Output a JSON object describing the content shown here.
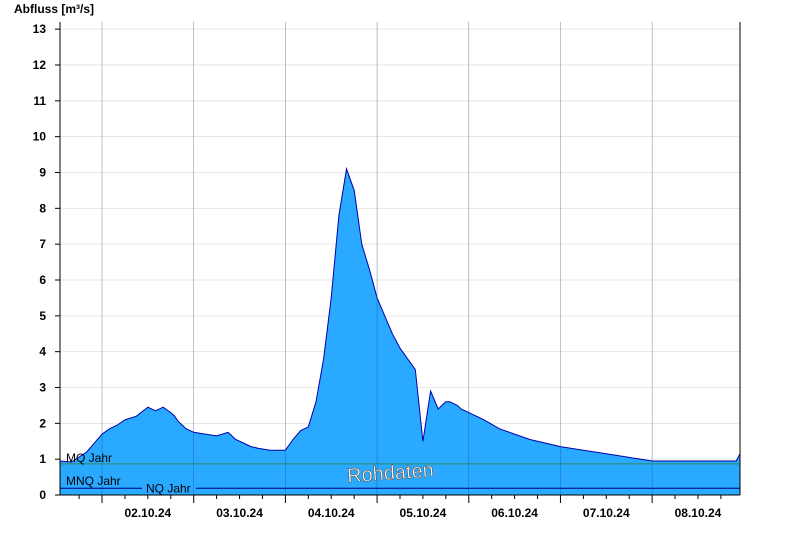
{
  "chart_data": {
    "type": "area",
    "ylabel": "Abfluss [m³/s]",
    "ylim": [
      0,
      13.2
    ],
    "yticks": [
      0,
      1,
      2,
      3,
      4,
      5,
      6,
      7,
      8,
      9,
      10,
      11,
      12,
      13
    ],
    "xlim": [
      "2024-10-01T13:00",
      "2024-10-08T23:00"
    ],
    "xtick_labels": [
      "02.10.24",
      "03.10.24",
      "04.10.24",
      "05.10.24",
      "06.10.24",
      "07.10.24",
      "08.10.24"
    ],
    "xtick_times": [
      "2024-10-02T12:00",
      "2024-10-03T12:00",
      "2024-10-04T12:00",
      "2024-10-05T12:00",
      "2024-10-06T12:00",
      "2024-10-07T12:00",
      "2024-10-08T12:00"
    ],
    "day_boundaries": [
      "2024-10-02T00:00",
      "2024-10-03T00:00",
      "2024-10-04T00:00",
      "2024-10-05T00:00",
      "2024-10-06T00:00",
      "2024-10-07T00:00",
      "2024-10-08T00:00"
    ],
    "grid": true,
    "colors": {
      "fill": "#29A9FF",
      "stroke": "#0000AA",
      "mq_line": "#2E8B57",
      "nq_line": "#000080"
    },
    "reference_lines": [
      {
        "label": "MQ Jahr",
        "value": 0.87
      },
      {
        "label": "MNQ Jahr",
        "value": 0.19
      },
      {
        "label": "NQ Jahr",
        "value": 0.16
      }
    ],
    "watermark": "Rohdaten",
    "series": [
      {
        "x": [
          "2024-10-01T13:00",
          "2024-10-01T16:00",
          "2024-10-01T20:00",
          "2024-10-02T00:00",
          "2024-10-02T02:00",
          "2024-10-02T04:00",
          "2024-10-02T06:00",
          "2024-10-02T09:00",
          "2024-10-02T12:00",
          "2024-10-02T14:00",
          "2024-10-02T16:00",
          "2024-10-02T18:00",
          "2024-10-02T19:00",
          "2024-10-02T20:00",
          "2024-10-02T21:00",
          "2024-10-02T22:00",
          "2024-10-03T00:00",
          "2024-10-03T03:00",
          "2024-10-03T06:00",
          "2024-10-03T09:00",
          "2024-10-03T11:00",
          "2024-10-03T13:00",
          "2024-10-03T15:00",
          "2024-10-03T17:00",
          "2024-10-03T20:00",
          "2024-10-04T00:00",
          "2024-10-04T02:00",
          "2024-10-04T04:00",
          "2024-10-04T06:00",
          "2024-10-04T08:00",
          "2024-10-04T10:00",
          "2024-10-04T12:00",
          "2024-10-04T14:00",
          "2024-10-04T16:00",
          "2024-10-04T18:00",
          "2024-10-04T20:00",
          "2024-10-04T22:00",
          "2024-10-05T00:00",
          "2024-10-05T02:00",
          "2024-10-05T04:00",
          "2024-10-05T06:00",
          "2024-10-05T08:00",
          "2024-10-05T10:00",
          "2024-10-05T12:00",
          "2024-10-05T14:00",
          "2024-10-05T16:00",
          "2024-10-05T18:00",
          "2024-10-05T19:00",
          "2024-10-05T20:00",
          "2024-10-05T21:00",
          "2024-10-05T22:00",
          "2024-10-06T00:00",
          "2024-10-06T04:00",
          "2024-10-06T08:00",
          "2024-10-06T12:00",
          "2024-10-06T16:00",
          "2024-10-06T20:00",
          "2024-10-07T00:00",
          "2024-10-07T06:00",
          "2024-10-07T12:00",
          "2024-10-07T18:00",
          "2024-10-08T00:00",
          "2024-10-08T06:00",
          "2024-10-08T12:00",
          "2024-10-08T18:00",
          "2024-10-08T22:00",
          "2024-10-08T23:00"
        ],
        "y": [
          0.95,
          0.92,
          1.2,
          1.7,
          1.85,
          1.95,
          2.1,
          2.2,
          2.45,
          2.35,
          2.45,
          2.3,
          2.2,
          2.05,
          1.95,
          1.85,
          1.75,
          1.7,
          1.65,
          1.75,
          1.55,
          1.45,
          1.35,
          1.3,
          1.25,
          1.25,
          1.55,
          1.8,
          1.9,
          2.6,
          3.8,
          5.5,
          7.8,
          9.1,
          8.5,
          7.0,
          6.3,
          5.5,
          5.0,
          4.5,
          4.1,
          3.8,
          3.5,
          1.5,
          2.9,
          2.4,
          2.6,
          2.6,
          2.55,
          2.5,
          2.4,
          2.3,
          2.1,
          1.85,
          1.7,
          1.55,
          1.45,
          1.35,
          1.25,
          1.15,
          1.05,
          0.95,
          0.95,
          0.95,
          0.95,
          0.95,
          1.15
        ]
      }
    ]
  }
}
